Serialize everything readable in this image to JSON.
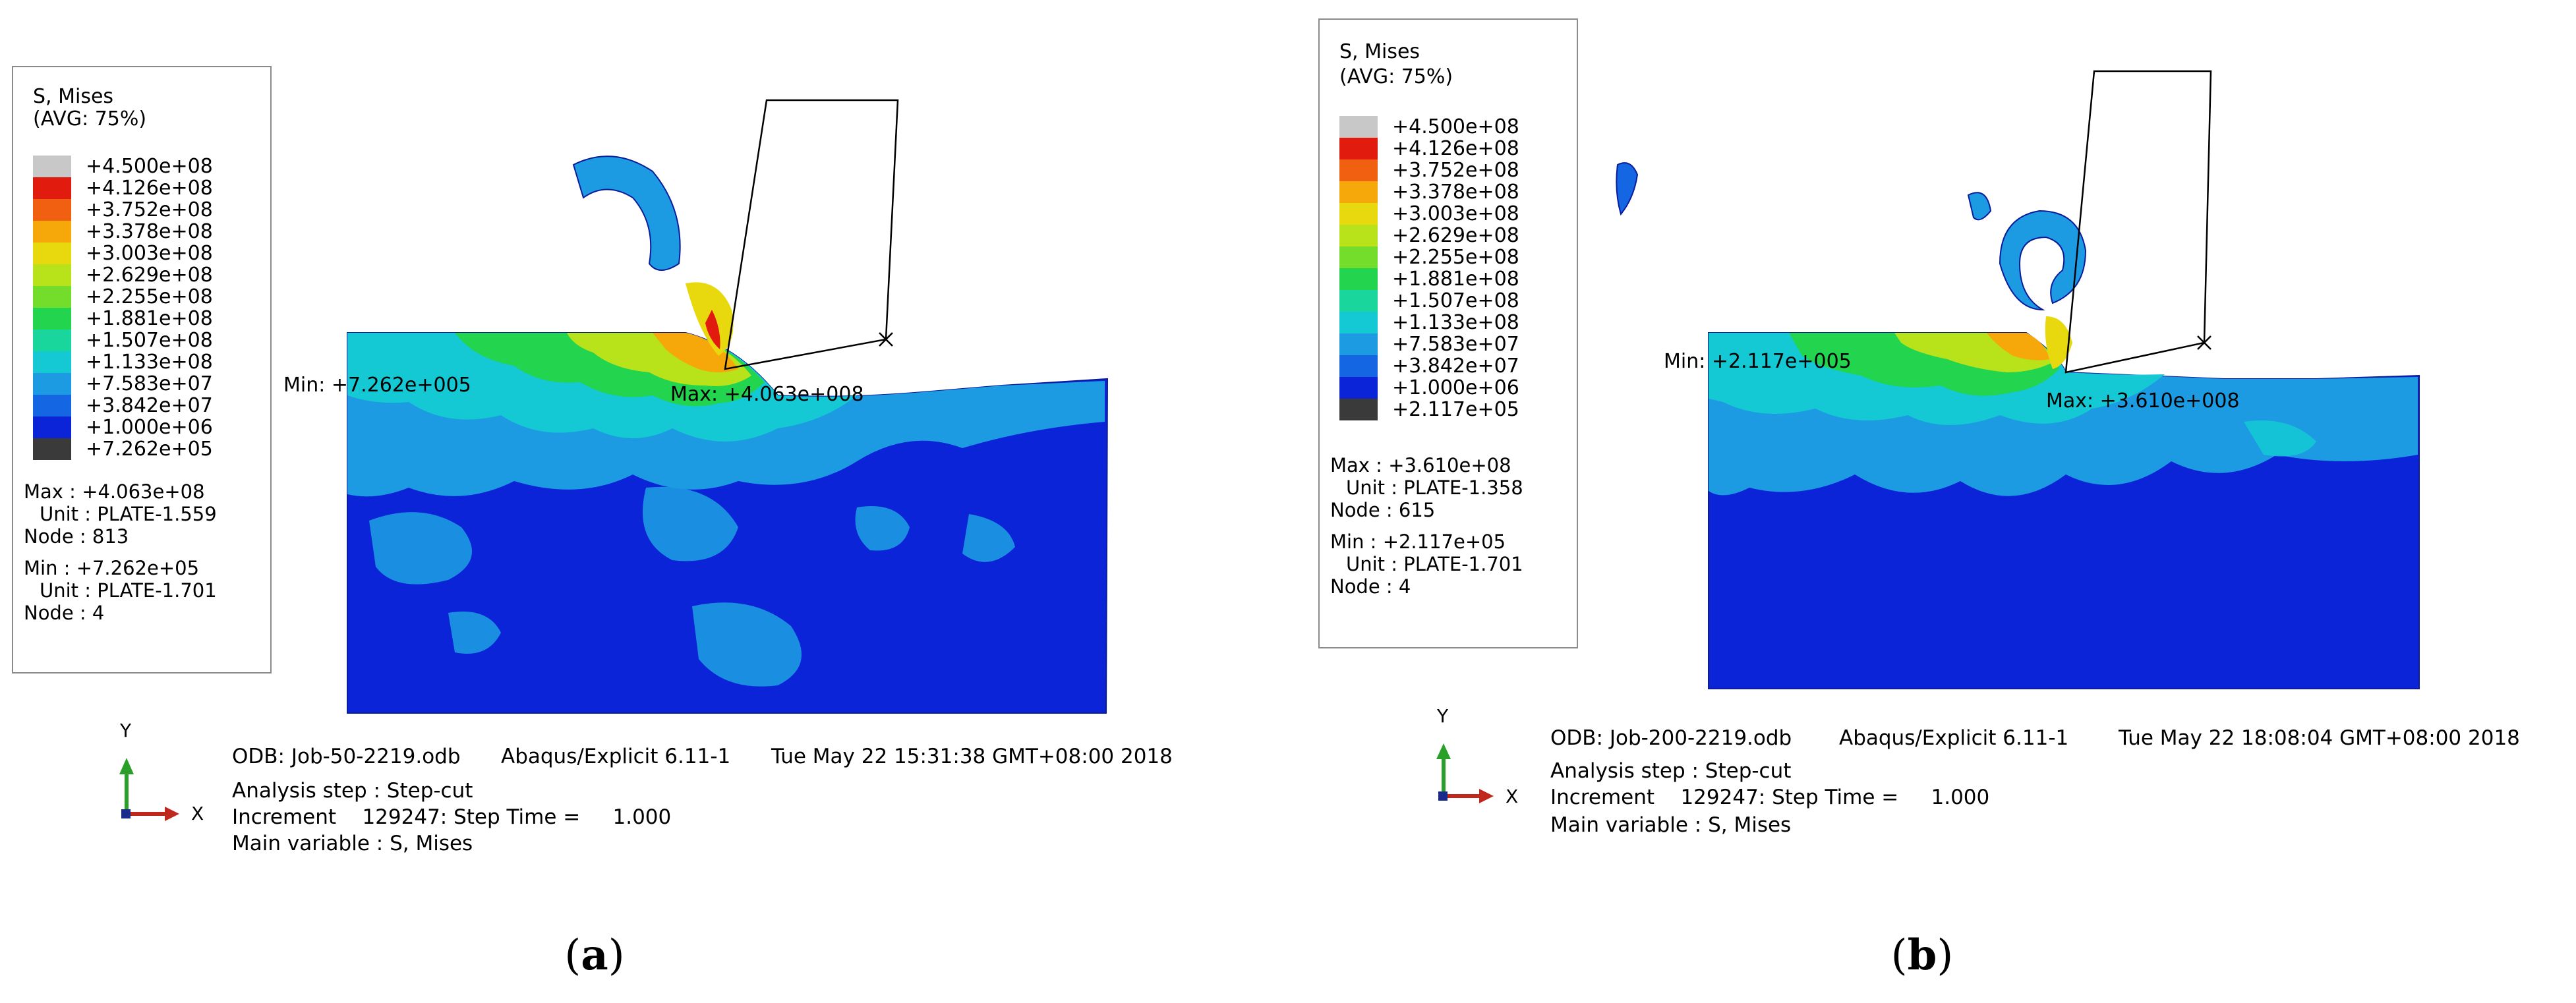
{
  "panels": [
    {
      "id": "a",
      "caption": {
        "open": "(",
        "letter": "a",
        "close": ")"
      },
      "legend": {
        "title": "S, Mises",
        "avg": "(AVG: 75%)",
        "levels": [
          "+4.500e+08",
          "+4.126e+08",
          "+3.752e+08",
          "+3.378e+08",
          "+3.003e+08",
          "+2.629e+08",
          "+2.255e+08",
          "+1.881e+08",
          "+1.507e+08",
          "+1.133e+08",
          "+7.583e+07",
          "+3.842e+07",
          "+1.000e+06",
          "+7.262e+05"
        ],
        "max_label": "Max",
        "max_value": "+4.063e+08",
        "max_unit": "PLATE-1.559",
        "max_node": "813",
        "min_label": "Min",
        "min_value": "+7.262e+05",
        "min_unit": "PLATE-1.701",
        "min_node": "4",
        "unit_label": "Unit",
        "node_label": "Node"
      },
      "plot_min_label": "Min: +7.262e+005",
      "plot_max_label": "Max: +4.063e+008",
      "info": {
        "odb": "ODB: Job-50-2219.odb",
        "solver": "Abaqus/Explicit 6.11-1",
        "date": "Tue May 22 15:31:38 GMT+08:00 2018",
        "step": "Analysis step : Step-cut",
        "increment": "Increment    129247: Step Time =     1.000",
        "variable": "Main variable : S, Mises"
      },
      "axes": {
        "y": "Y",
        "x": "X"
      }
    },
    {
      "id": "b",
      "caption": {
        "open": "(",
        "letter": "b",
        "close": ")"
      },
      "legend": {
        "title": "S, Mises",
        "avg": "(AVG: 75%)",
        "levels": [
          "+4.500e+08",
          "+4.126e+08",
          "+3.752e+08",
          "+3.378e+08",
          "+3.003e+08",
          "+2.629e+08",
          "+2.255e+08",
          "+1.881e+08",
          "+1.507e+08",
          "+1.133e+08",
          "+7.583e+07",
          "+3.842e+07",
          "+1.000e+06",
          "+2.117e+05"
        ],
        "max_label": "Max",
        "max_value": "+3.610e+08",
        "max_unit": "PLATE-1.358",
        "max_node": "615",
        "min_label": "Min",
        "min_value": "+2.117e+05",
        "min_unit": "PLATE-1.701",
        "min_node": "4",
        "unit_label": "Unit",
        "node_label": "Node"
      },
      "plot_min_label": "Min: +2.117e+005",
      "plot_max_label": "Max: +3.610e+008",
      "info": {
        "odb": "ODB: Job-200-2219.odb",
        "solver": "Abaqus/Explicit 6.11-1",
        "date": "Tue May 22 18:08:04 GMT+08:00 2018",
        "step": "Analysis step : Step-cut",
        "increment": "Increment    129247: Step Time =     1.000",
        "variable": "Main variable : S, Mises"
      },
      "axes": {
        "y": "Y",
        "x": "X"
      }
    }
  ],
  "contour_colors": [
    "#c8c8c8",
    "#e21b0f",
    "#f06010",
    "#f6a80a",
    "#e8d80e",
    "#b8e21a",
    "#74dc2a",
    "#22d44e",
    "#18d69c",
    "#14c8d4",
    "#1c9ae2",
    "#1466e2",
    "#0c24d8",
    "#3a3a3a"
  ]
}
